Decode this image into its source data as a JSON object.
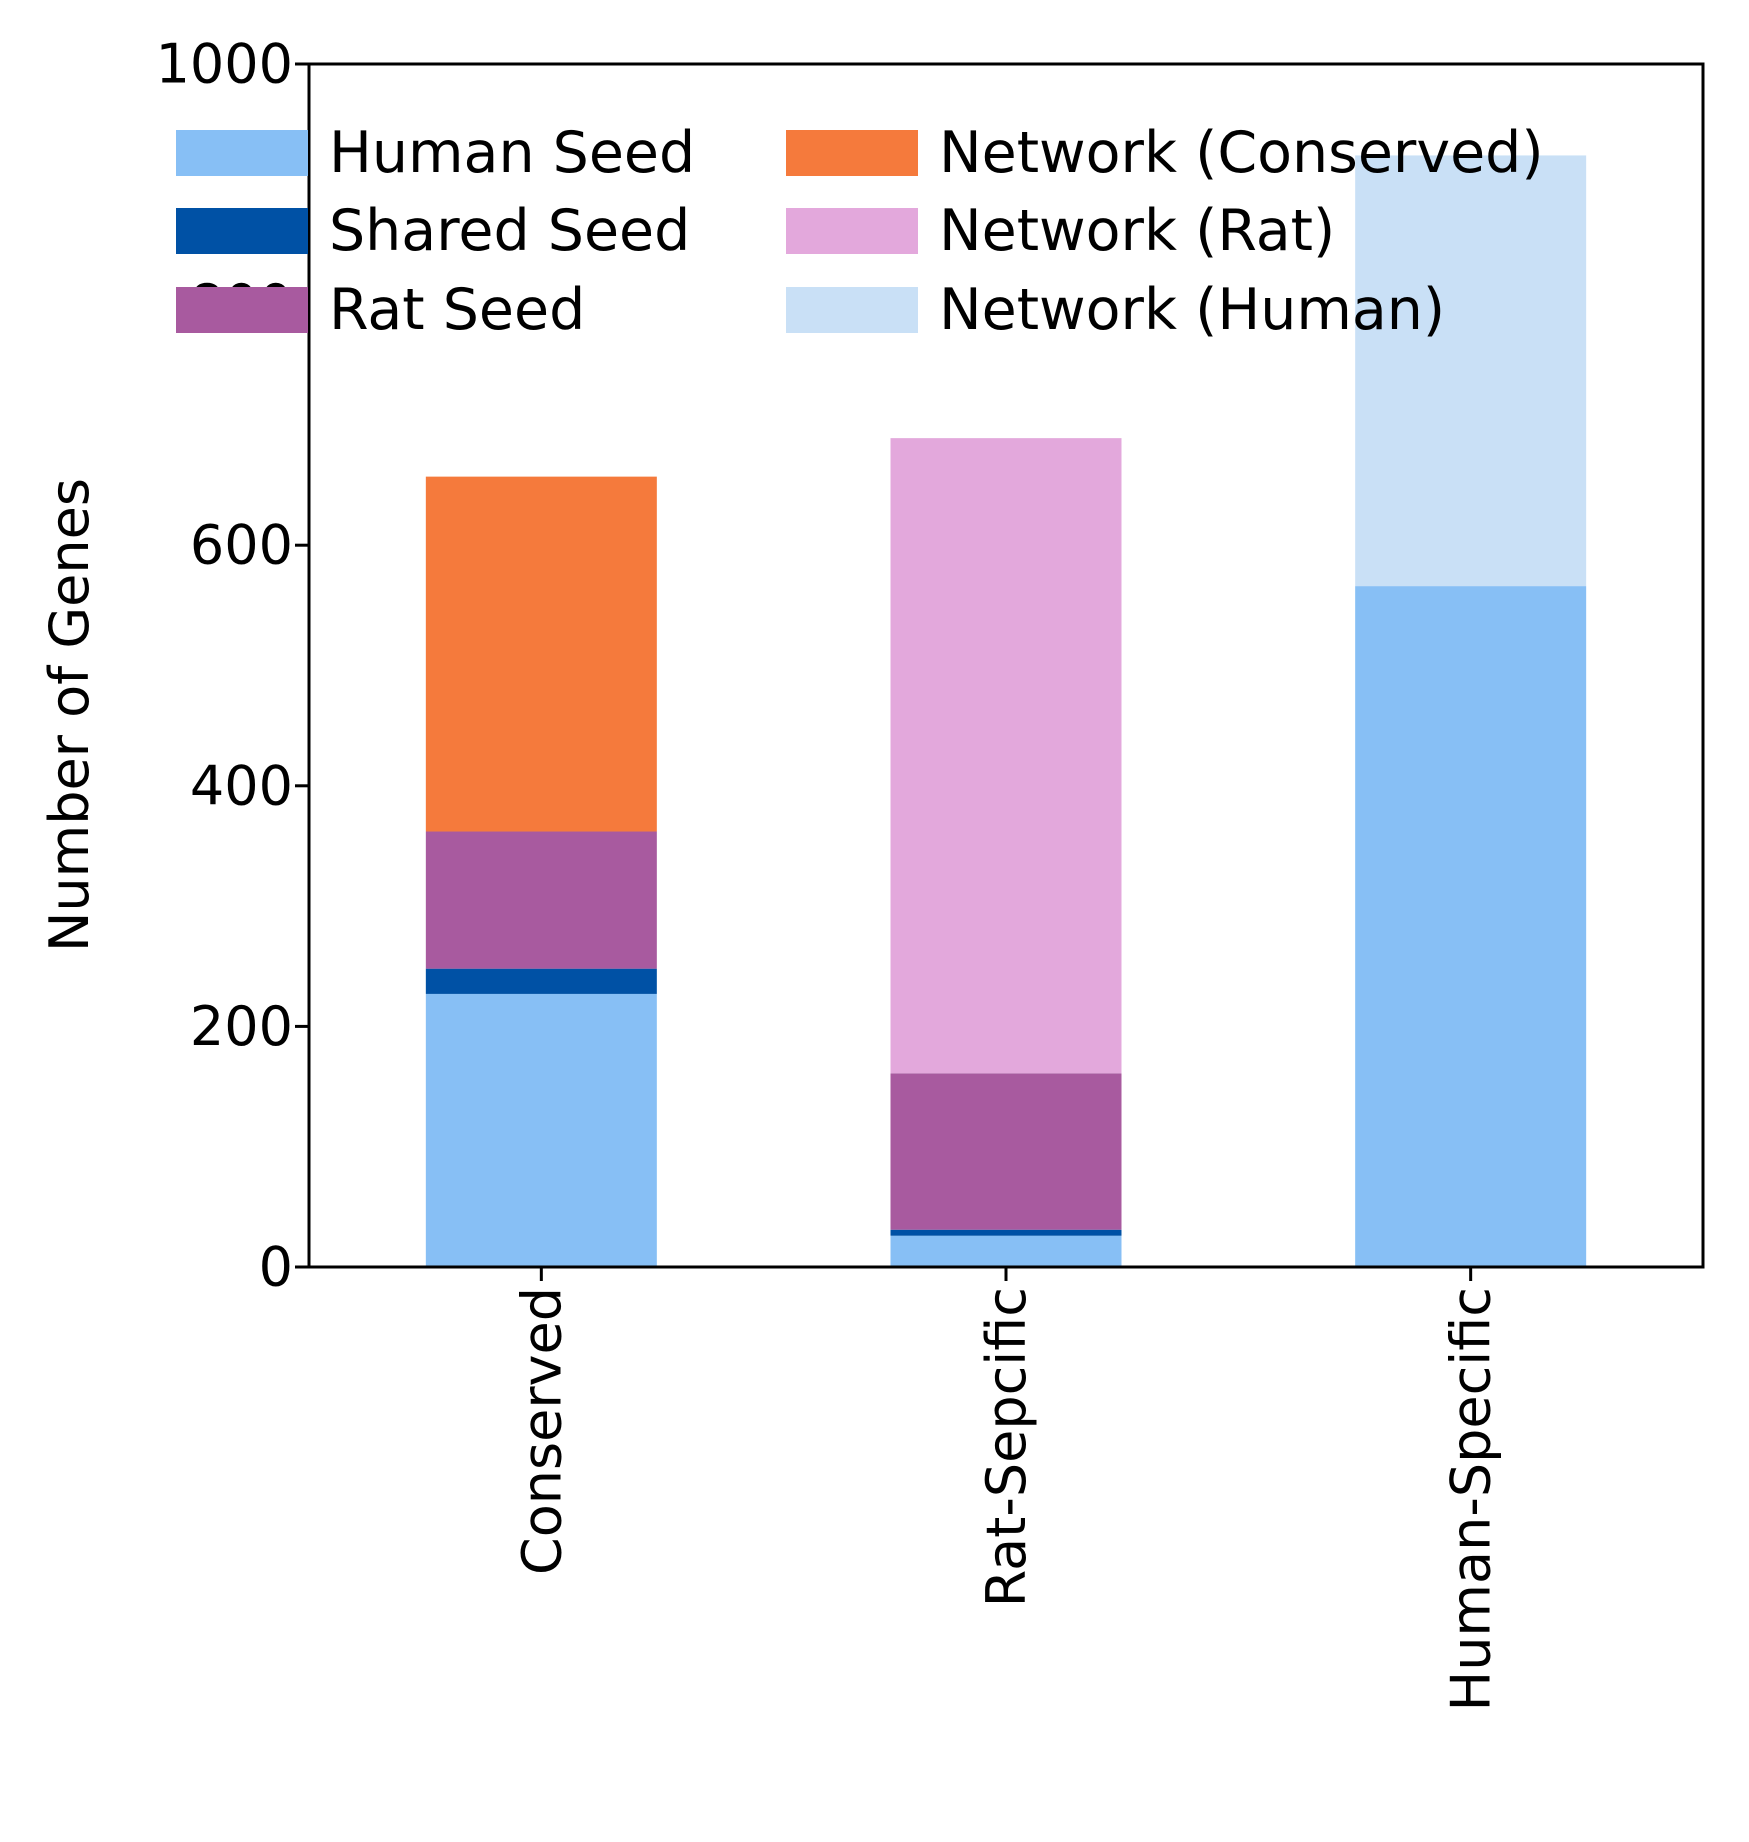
{
  "chart_data": {
    "type": "bar",
    "stacked": true,
    "categories": [
      "Conserved",
      "Rat-Sepcific",
      "Human-Specific"
    ],
    "series": [
      {
        "name": "Human Seed",
        "color": "#87bff5",
        "values": [
          227,
          26,
          566
        ]
      },
      {
        "name": "Shared Seed",
        "color": "#0051a5",
        "values": [
          21,
          5,
          0
        ]
      },
      {
        "name": "Rat Seed",
        "color": "#a85a9f",
        "values": [
          114,
          130,
          0
        ]
      },
      {
        "name": "Network (Conserved)",
        "color": "#f57a3c",
        "values": [
          295,
          0,
          0
        ]
      },
      {
        "name": "Network (Rat)",
        "color": "#e3a8dc",
        "values": [
          0,
          528,
          0
        ]
      },
      {
        "name": "Network (Human)",
        "color": "#c9e0f6",
        "values": [
          0,
          0,
          358
        ]
      }
    ],
    "ylabel": "Number of Genes",
    "xlabel": "",
    "ylim": [
      0,
      1000
    ],
    "yticks": [
      "0",
      "200",
      "400",
      "600",
      "800",
      "1000"
    ],
    "legend_placement": "top-left",
    "legend_columns": 2,
    "grid": false
  }
}
